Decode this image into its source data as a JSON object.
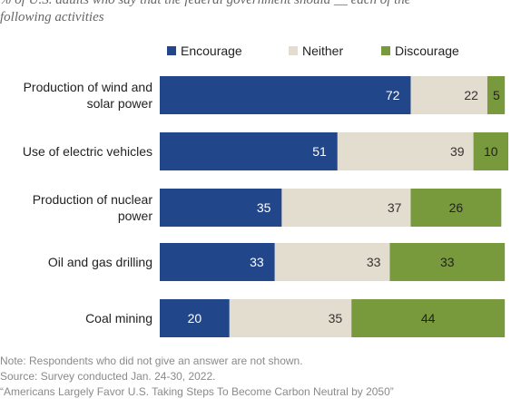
{
  "subtitle_line1": "% of U.S. adults who say that the federal government should __ each of the",
  "subtitle_line2": "following activities",
  "colors": {
    "encourage": "#22468a",
    "neither": "#e3ddd0",
    "discourage": "#789a3c"
  },
  "chart_data": {
    "type": "bar",
    "orientation": "horizontal",
    "stacked": true,
    "categories": [
      "Production of wind and solar power",
      "Use of electric vehicles",
      "Production of nuclear power",
      "Oil and gas drilling",
      "Coal mining"
    ],
    "category_lines": [
      [
        "Production of wind and",
        "solar power"
      ],
      [
        "Use of electric vehicles"
      ],
      [
        "Production of nuclear",
        "power"
      ],
      [
        "Oil and gas drilling"
      ],
      [
        "Coal mining"
      ]
    ],
    "series": [
      {
        "name": "Encourage",
        "values": [
          72,
          51,
          35,
          33,
          20
        ]
      },
      {
        "name": "Neither",
        "values": [
          22,
          39,
          37,
          33,
          35
        ]
      },
      {
        "name": "Discourage",
        "values": [
          5,
          10,
          26,
          33,
          44
        ]
      }
    ],
    "legend_position": "top",
    "xlim": [
      0,
      100
    ]
  },
  "notes": [
    "Note: Respondents who did not give an answer are not shown.",
    "Source: Survey conducted Jan. 24-30, 2022.",
    "“Americans Largely Favor U.S. Taking Steps To Become Carbon Neutral by 2050”"
  ]
}
